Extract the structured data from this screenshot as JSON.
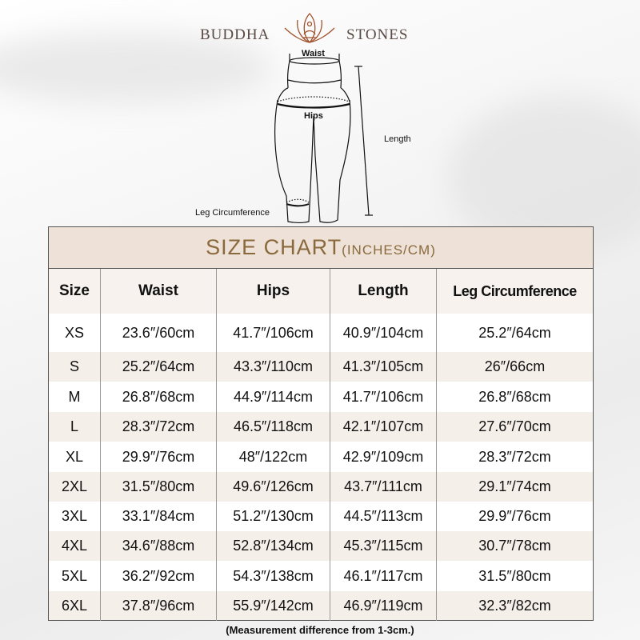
{
  "brand": {
    "left": "BUDDHA",
    "right": "STONES",
    "icon": "lotus-meditation-icon"
  },
  "diagram": {
    "waist": "Waist",
    "hips": "Hips",
    "length": "Length",
    "leg": "Leg Circumference"
  },
  "chart": {
    "title": "SIZE CHART",
    "subtitle": "(INCHES/CM)",
    "headers": [
      "Size",
      "Waist",
      "Hips",
      "Length",
      "Leg Circumference"
    ],
    "rows": [
      [
        "XS",
        "23.6″/60cm",
        "41.7″/106cm",
        "40.9″/104cm",
        "25.2″/64cm"
      ],
      [
        "S",
        "25.2″/64cm",
        "43.3″/110cm",
        "41.3″/105cm",
        "26″/66cm"
      ],
      [
        "M",
        "26.8″/68cm",
        "44.9″/114cm",
        "41.7″/106cm",
        "26.8″/68cm"
      ],
      [
        "L",
        "28.3″/72cm",
        "46.5″/118cm",
        "42.1″/107cm",
        "27.6″/70cm"
      ],
      [
        "XL",
        "29.9″/76cm",
        "48″/122cm",
        "42.9″/109cm",
        "28.3″/72cm"
      ],
      [
        "2XL",
        "31.5″/80cm",
        "49.6″/126cm",
        "43.7″/111cm",
        "29.1″/74cm"
      ],
      [
        "3XL",
        "33.1″/84cm",
        "51.2″/130cm",
        "44.5″/113cm",
        "29.9″/76cm"
      ],
      [
        "4XL",
        "34.6″/88cm",
        "52.8″/134cm",
        "45.3″/115cm",
        "30.7″/78cm"
      ],
      [
        "5XL",
        "36.2″/92cm",
        "54.3″/138cm",
        "46.1″/117cm",
        "31.5″/80cm"
      ],
      [
        "6XL",
        "37.8″/96cm",
        "55.9″/142cm",
        "46.9″/119cm",
        "32.3″/82cm"
      ]
    ]
  },
  "note": "(Measurement difference from 1-3cm.)",
  "colors": {
    "accent": "#8a6a3d",
    "title_bg": "#ede1d8",
    "alt_row": "#f5efe9"
  }
}
